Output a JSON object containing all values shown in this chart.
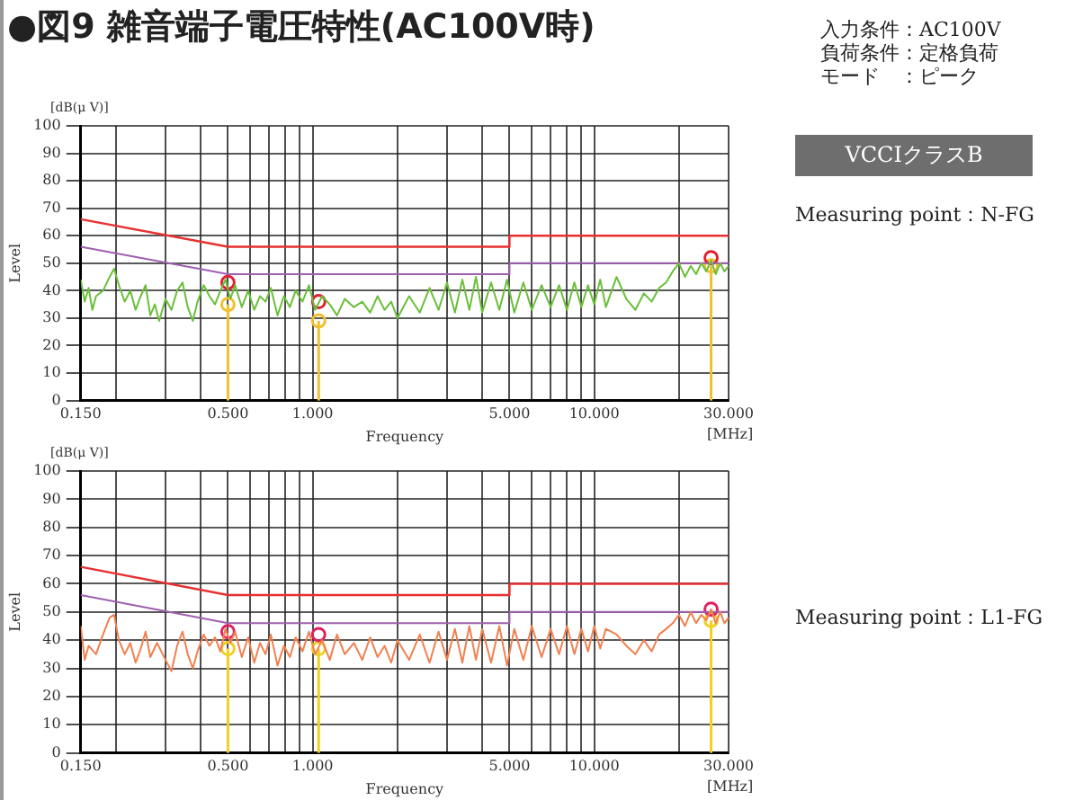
{
  "chart_data": [
    {
      "type": "line",
      "title": "●図9 雑音端子電圧特性(AC100V時)",
      "xlabel": "Frequency",
      "ylabel": "Level",
      "annotations": [
        "[dB(μ V)]",
        "[MHz]",
        "入力条件：AC100V",
        "負荷条件：定格負荷",
        "モード　：ピーク",
        "VCCIクラスB",
        "Measuring point：N-FG"
      ],
      "log": "x",
      "grid": true,
      "legend": false,
      "xlim": [
        0.15,
        30
      ],
      "ylim": [
        0,
        100
      ],
      "yticks": [
        0,
        10,
        20,
        30,
        40,
        50,
        60,
        70,
        80,
        90,
        100
      ],
      "xticks": [
        {
          "value": 0.15,
          "label": "0.150"
        },
        {
          "value": 0.2,
          "label": null
        },
        {
          "value": 0.3,
          "label": null
        },
        {
          "value": 0.4,
          "label": null
        },
        {
          "value": 0.5,
          "label": "0.500"
        },
        {
          "value": 0.6,
          "label": null
        },
        {
          "value": 0.7,
          "label": null
        },
        {
          "value": 0.8,
          "label": null
        },
        {
          "value": 0.9,
          "label": null
        },
        {
          "value": 1,
          "label": "1.000"
        },
        {
          "value": 2,
          "label": null
        },
        {
          "value": 3,
          "label": null
        },
        {
          "value": 4,
          "label": null
        },
        {
          "value": 5,
          "label": "5.000"
        },
        {
          "value": 6,
          "label": null
        },
        {
          "value": 7,
          "label": null
        },
        {
          "value": 8,
          "label": null
        },
        {
          "value": 9,
          "label": null
        },
        {
          "value": 10,
          "label": "10.000"
        },
        {
          "value": 20,
          "label": null
        },
        {
          "value": 30,
          "label": "30.000"
        }
      ],
      "series": [
        {
          "type": "line",
          "color": "#6abf3a",
          "marker": "none",
          "line_style": "solid",
          "x": [
            0.15,
            0.155,
            0.16,
            0.165,
            0.17,
            0.18,
            0.19,
            0.197,
            0.205,
            0.215,
            0.225,
            0.235,
            0.245,
            0.255,
            0.265,
            0.275,
            0.285,
            0.3,
            0.315,
            0.33,
            0.345,
            0.36,
            0.375,
            0.39,
            0.41,
            0.43,
            0.45,
            0.47,
            0.49,
            0.51,
            0.53,
            0.56,
            0.59,
            0.62,
            0.65,
            0.68,
            0.71,
            0.75,
            0.79,
            0.83,
            0.87,
            0.92,
            0.97,
            1.02,
            1.08,
            1.15,
            1.22,
            1.3,
            1.4,
            1.5,
            1.6,
            1.7,
            1.8,
            1.9,
            2.0,
            2.2,
            2.4,
            2.6,
            2.8,
            3.0,
            3.2,
            3.4,
            3.6,
            3.8,
            4.0,
            4.3,
            4.6,
            4.9,
            5.2,
            5.6,
            6.0,
            6.5,
            7.0,
            7.5,
            8.0,
            8.5,
            9.0,
            9.5,
            10,
            10.5,
            11,
            12,
            13,
            14,
            15,
            16,
            17,
            18,
            19,
            20,
            21,
            22,
            23,
            24,
            25,
            26,
            27,
            28,
            29,
            30
          ],
          "values": [
            44,
            36,
            41,
            33,
            38,
            40,
            45,
            48,
            42,
            36,
            40,
            33,
            38,
            42,
            31,
            35,
            29,
            37,
            33,
            40,
            43,
            34,
            29,
            36,
            42,
            38,
            35,
            40,
            44,
            37,
            42,
            34,
            40,
            33,
            38,
            36,
            41,
            31,
            38,
            34,
            40,
            36,
            42,
            33,
            38,
            35,
            31,
            37,
            34,
            36,
            32,
            38,
            33,
            36,
            30,
            38,
            32,
            41,
            33,
            43,
            32,
            44,
            33,
            45,
            32,
            43,
            33,
            44,
            32,
            43,
            33,
            42,
            34,
            42,
            33,
            43,
            34,
            42,
            35,
            44,
            34,
            45,
            37,
            33,
            39,
            36,
            41,
            43,
            47,
            50,
            45,
            49,
            46,
            50,
            47,
            51,
            46,
            50,
            47,
            49
          ]
        },
        {
          "type": "line",
          "color": "#e83030",
          "marker": "none",
          "line_style": "solid",
          "x": [
            0.15,
            0.5,
            5,
            5,
            30
          ],
          "values": [
            66,
            56,
            56,
            60,
            60
          ]
        },
        {
          "type": "line",
          "color": "#a060b0",
          "marker": "none",
          "line_style": "solid",
          "x": [
            0.15,
            0.5,
            5,
            5,
            30
          ],
          "values": [
            56,
            46,
            46,
            50,
            50
          ]
        },
        {
          "type": "scatter",
          "color": "#e02030",
          "marker": "circle",
          "x": [
            0.5,
            1.05,
            26
          ],
          "values": [
            43,
            36,
            52
          ]
        },
        {
          "type": "lollipop",
          "color": "#f0c030",
          "marker": "circle",
          "x": [
            0.5,
            1.05,
            26
          ],
          "values": [
            35,
            29,
            49
          ]
        }
      ]
    },
    {
      "type": "line",
      "xlabel": "Frequency",
      "ylabel": "Level",
      "annotations": [
        "[dB(μ V)]",
        "[MHz]",
        "Measuring point：L1-FG"
      ],
      "log": "x",
      "grid": true,
      "legend": false,
      "xlim": [
        0.15,
        30
      ],
      "ylim": [
        0,
        100
      ],
      "yticks": [
        0,
        10,
        20,
        30,
        40,
        50,
        60,
        70,
        80,
        90,
        100
      ],
      "xticks": [
        {
          "value": 0.15,
          "label": "0.150"
        },
        {
          "value": 0.2,
          "label": null
        },
        {
          "value": 0.3,
          "label": null
        },
        {
          "value": 0.4,
          "label": null
        },
        {
          "value": 0.5,
          "label": "0.500"
        },
        {
          "value": 0.6,
          "label": null
        },
        {
          "value": 0.7,
          "label": null
        },
        {
          "value": 0.8,
          "label": null
        },
        {
          "value": 0.9,
          "label": null
        },
        {
          "value": 1,
          "label": "1.000"
        },
        {
          "value": 2,
          "label": null
        },
        {
          "value": 3,
          "label": null
        },
        {
          "value": 4,
          "label": null
        },
        {
          "value": 5,
          "label": "5.000"
        },
        {
          "value": 6,
          "label": null
        },
        {
          "value": 7,
          "label": null
        },
        {
          "value": 8,
          "label": null
        },
        {
          "value": 9,
          "label": null
        },
        {
          "value": 10,
          "label": "10.000"
        },
        {
          "value": 20,
          "label": null
        },
        {
          "value": 30,
          "label": "30.000"
        }
      ],
      "series": [
        {
          "type": "line",
          "color": "#f08050",
          "marker": "none",
          "line_style": "solid",
          "x": [
            0.15,
            0.155,
            0.16,
            0.17,
            0.18,
            0.19,
            0.197,
            0.205,
            0.215,
            0.225,
            0.235,
            0.245,
            0.255,
            0.265,
            0.28,
            0.3,
            0.315,
            0.33,
            0.345,
            0.36,
            0.375,
            0.39,
            0.41,
            0.43,
            0.45,
            0.47,
            0.49,
            0.51,
            0.53,
            0.56,
            0.59,
            0.62,
            0.65,
            0.68,
            0.71,
            0.75,
            0.79,
            0.83,
            0.87,
            0.92,
            0.97,
            1.02,
            1.08,
            1.15,
            1.22,
            1.3,
            1.4,
            1.5,
            1.6,
            1.7,
            1.8,
            1.9,
            2.0,
            2.2,
            2.4,
            2.6,
            2.8,
            3.0,
            3.2,
            3.4,
            3.6,
            3.8,
            4.0,
            4.3,
            4.6,
            4.9,
            5.2,
            5.6,
            6.0,
            6.5,
            7.0,
            7.5,
            8.0,
            8.5,
            9.0,
            9.5,
            10,
            10.5,
            11,
            12,
            13,
            14,
            15,
            16,
            17,
            18,
            19,
            20,
            21,
            22,
            23,
            24,
            25,
            26,
            27,
            28,
            29,
            30
          ],
          "values": [
            45,
            33,
            38,
            35,
            42,
            48,
            49,
            40,
            35,
            39,
            32,
            37,
            43,
            34,
            39,
            33,
            29,
            38,
            43,
            35,
            30,
            36,
            42,
            38,
            41,
            36,
            44,
            39,
            43,
            34,
            41,
            32,
            39,
            35,
            42,
            31,
            38,
            34,
            41,
            36,
            43,
            35,
            40,
            33,
            42,
            35,
            39,
            33,
            41,
            34,
            38,
            32,
            40,
            33,
            42,
            32,
            43,
            33,
            44,
            32,
            45,
            33,
            44,
            32,
            45,
            31,
            44,
            33,
            45,
            34,
            44,
            35,
            45,
            35,
            44,
            36,
            45,
            37,
            44,
            42,
            38,
            35,
            40,
            36,
            42,
            44,
            46,
            49,
            45,
            50,
            46,
            49,
            47,
            51,
            46,
            50,
            46,
            48
          ]
        },
        {
          "type": "line",
          "color": "#e83030",
          "marker": "none",
          "line_style": "solid",
          "x": [
            0.15,
            0.5,
            5,
            5,
            30
          ],
          "values": [
            66,
            56,
            56,
            60,
            60
          ]
        },
        {
          "type": "line",
          "color": "#a060b0",
          "marker": "none",
          "line_style": "solid",
          "x": [
            0.15,
            0.5,
            5,
            5,
            30
          ],
          "values": [
            56,
            46,
            46,
            50,
            50
          ]
        },
        {
          "type": "scatter",
          "color": "#e02060",
          "marker": "circle",
          "x": [
            0.5,
            1.05,
            26
          ],
          "values": [
            43,
            42,
            51
          ]
        },
        {
          "type": "lollipop",
          "color": "#f0d020",
          "marker": "circle",
          "x": [
            0.5,
            1.05,
            26
          ],
          "values": [
            37,
            37,
            47
          ]
        }
      ]
    }
  ]
}
